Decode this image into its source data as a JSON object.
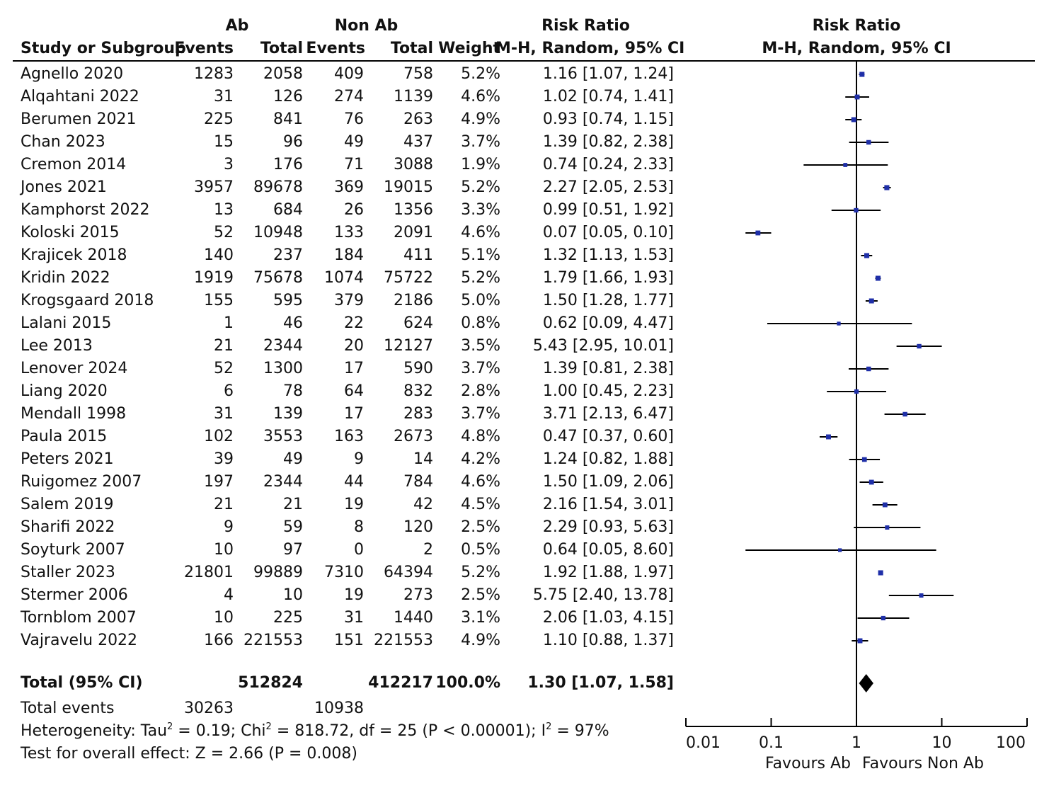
{
  "headers": {
    "group1": "Ab",
    "group2": "Non Ab",
    "risk_ratio": "Risk Ratio",
    "risk_ratio_plot": "Risk Ratio",
    "study": "Study or Subgroup",
    "events1": "Events",
    "total1": "Total",
    "events2": "Events",
    "total2": "Total",
    "weight": "Weight",
    "method": "M-H, Random, 95% CI",
    "method_plot": "M-H, Random, 95% CI"
  },
  "studies": [
    {
      "name": "Agnello 2020",
      "e1": "1283",
      "t1": "2058",
      "e2": "409",
      "t2": "758",
      "w": "5.2%",
      "ci": "1.16 [1.07, 1.24]"
    },
    {
      "name": "Alqahtani 2022",
      "e1": "31",
      "t1": "126",
      "e2": "274",
      "t2": "1139",
      "w": "4.6%",
      "ci": "1.02 [0.74, 1.41]"
    },
    {
      "name": "Berumen 2021",
      "e1": "225",
      "t1": "841",
      "e2": "76",
      "t2": "263",
      "w": "4.9%",
      "ci": "0.93 [0.74, 1.15]"
    },
    {
      "name": "Chan 2023",
      "e1": "15",
      "t1": "96",
      "e2": "49",
      "t2": "437",
      "w": "3.7%",
      "ci": "1.39 [0.82, 2.38]"
    },
    {
      "name": "Cremon 2014",
      "e1": "3",
      "t1": "176",
      "e2": "71",
      "t2": "3088",
      "w": "1.9%",
      "ci": "0.74 [0.24, 2.33]"
    },
    {
      "name": "Jones 2021",
      "e1": "3957",
      "t1": "89678",
      "e2": "369",
      "t2": "19015",
      "w": "5.2%",
      "ci": "2.27 [2.05, 2.53]"
    },
    {
      "name": "Kamphorst 2022",
      "e1": "13",
      "t1": "684",
      "e2": "26",
      "t2": "1356",
      "w": "3.3%",
      "ci": "0.99 [0.51, 1.92]"
    },
    {
      "name": "Koloski 2015",
      "e1": "52",
      "t1": "10948",
      "e2": "133",
      "t2": "2091",
      "w": "4.6%",
      "ci": "0.07 [0.05, 0.10]"
    },
    {
      "name": "Krajicek 2018",
      "e1": "140",
      "t1": "237",
      "e2": "184",
      "t2": "411",
      "w": "5.1%",
      "ci": "1.32 [1.13, 1.53]"
    },
    {
      "name": "Kridin 2022",
      "e1": "1919",
      "t1": "75678",
      "e2": "1074",
      "t2": "75722",
      "w": "5.2%",
      "ci": "1.79 [1.66, 1.93]"
    },
    {
      "name": "Krogsgaard 2018",
      "e1": "155",
      "t1": "595",
      "e2": "379",
      "t2": "2186",
      "w": "5.0%",
      "ci": "1.50 [1.28, 1.77]"
    },
    {
      "name": "Lalani 2015",
      "e1": "1",
      "t1": "46",
      "e2": "22",
      "t2": "624",
      "w": "0.8%",
      "ci": "0.62 [0.09, 4.47]"
    },
    {
      "name": "Lee 2013",
      "e1": "21",
      "t1": "2344",
      "e2": "20",
      "t2": "12127",
      "w": "3.5%",
      "ci": "5.43 [2.95, 10.01]"
    },
    {
      "name": "Lenover 2024",
      "e1": "52",
      "t1": "1300",
      "e2": "17",
      "t2": "590",
      "w": "3.7%",
      "ci": "1.39 [0.81, 2.38]"
    },
    {
      "name": "Liang 2020",
      "e1": "6",
      "t1": "78",
      "e2": "64",
      "t2": "832",
      "w": "2.8%",
      "ci": "1.00 [0.45, 2.23]"
    },
    {
      "name": "Mendall 1998",
      "e1": "31",
      "t1": "139",
      "e2": "17",
      "t2": "283",
      "w": "3.7%",
      "ci": "3.71 [2.13, 6.47]"
    },
    {
      "name": "Paula 2015",
      "e1": "102",
      "t1": "3553",
      "e2": "163",
      "t2": "2673",
      "w": "4.8%",
      "ci": "0.47 [0.37, 0.60]"
    },
    {
      "name": "Peters 2021",
      "e1": "39",
      "t1": "49",
      "e2": "9",
      "t2": "14",
      "w": "4.2%",
      "ci": "1.24 [0.82, 1.88]"
    },
    {
      "name": "Ruigomez 2007",
      "e1": "197",
      "t1": "2344",
      "e2": "44",
      "t2": "784",
      "w": "4.6%",
      "ci": "1.50 [1.09, 2.06]"
    },
    {
      "name": "Salem 2019",
      "e1": "21",
      "t1": "21",
      "e2": "19",
      "t2": "42",
      "w": "4.5%",
      "ci": "2.16 [1.54, 3.01]"
    },
    {
      "name": "Sharifi 2022",
      "e1": "9",
      "t1": "59",
      "e2": "8",
      "t2": "120",
      "w": "2.5%",
      "ci": "2.29 [0.93, 5.63]"
    },
    {
      "name": "Soyturk 2007",
      "e1": "10",
      "t1": "97",
      "e2": "0",
      "t2": "2",
      "w": "0.5%",
      "ci": "0.64 [0.05, 8.60]"
    },
    {
      "name": "Staller 2023",
      "e1": "21801",
      "t1": "99889",
      "e2": "7310",
      "t2": "64394",
      "w": "5.2%",
      "ci": "1.92 [1.88, 1.97]"
    },
    {
      "name": "Stermer 2006",
      "e1": "4",
      "t1": "10",
      "e2": "19",
      "t2": "273",
      "w": "2.5%",
      "ci": "5.75 [2.40, 13.78]"
    },
    {
      "name": "Tornblom 2007",
      "e1": "10",
      "t1": "225",
      "e2": "31",
      "t2": "1440",
      "w": "3.1%",
      "ci": "2.06 [1.03, 4.15]"
    },
    {
      "name": "Vajravelu 2022",
      "e1": "166",
      "t1": "221553",
      "e2": "151",
      "t2": "221553",
      "w": "4.9%",
      "ci": "1.10 [0.88, 1.37]"
    }
  ],
  "total": {
    "label": "Total (95% CI)",
    "t1": "512824",
    "t2": "412217",
    "w": "100.0%",
    "ci": "1.30 [1.07, 1.58]"
  },
  "total_events": {
    "label": "Total events",
    "e1": "30263",
    "e2": "10938"
  },
  "heterogeneity": {
    "prefix": "Heterogeneity: Tau",
    "tau2_sup": "2",
    "tau2_value": " = 0.19; Chi",
    "chi2_sup": "2",
    "chi2_value": " = 818.72, df = 25 (P < 0.00001); I",
    "i2_sup": "2",
    "i2_value": " = 97%"
  },
  "overall_effect": "Test for overall effect: Z = 2.66 (P = 0.008)",
  "axis": {
    "ticks": [
      "0.01",
      "0.1",
      "1",
      "10",
      "100"
    ],
    "favours_left": "Favours Ab",
    "favours_right": "Favours Non Ab"
  },
  "colors": {
    "marker": "#1f2fa8",
    "line": "#000000"
  },
  "chart_data": {
    "type": "forest",
    "x_scale": "log",
    "xlim": [
      0.01,
      100
    ],
    "null_value": 1,
    "estimates": [
      {
        "rr": 1.16,
        "lo": 1.07,
        "hi": 1.24,
        "weight": 5.2
      },
      {
        "rr": 1.02,
        "lo": 0.74,
        "hi": 1.41,
        "weight": 4.6
      },
      {
        "rr": 0.93,
        "lo": 0.74,
        "hi": 1.15,
        "weight": 4.9
      },
      {
        "rr": 1.39,
        "lo": 0.82,
        "hi": 2.38,
        "weight": 3.7
      },
      {
        "rr": 0.74,
        "lo": 0.24,
        "hi": 2.33,
        "weight": 1.9
      },
      {
        "rr": 2.27,
        "lo": 2.05,
        "hi": 2.53,
        "weight": 5.2
      },
      {
        "rr": 0.99,
        "lo": 0.51,
        "hi": 1.92,
        "weight": 3.3
      },
      {
        "rr": 0.07,
        "lo": 0.05,
        "hi": 0.1,
        "weight": 4.6
      },
      {
        "rr": 1.32,
        "lo": 1.13,
        "hi": 1.53,
        "weight": 5.1
      },
      {
        "rr": 1.79,
        "lo": 1.66,
        "hi": 1.93,
        "weight": 5.2
      },
      {
        "rr": 1.5,
        "lo": 1.28,
        "hi": 1.77,
        "weight": 5.0
      },
      {
        "rr": 0.62,
        "lo": 0.09,
        "hi": 4.47,
        "weight": 0.8
      },
      {
        "rr": 5.43,
        "lo": 2.95,
        "hi": 10.01,
        "weight": 3.5
      },
      {
        "rr": 1.39,
        "lo": 0.81,
        "hi": 2.38,
        "weight": 3.7
      },
      {
        "rr": 1.0,
        "lo": 0.45,
        "hi": 2.23,
        "weight": 2.8
      },
      {
        "rr": 3.71,
        "lo": 2.13,
        "hi": 6.47,
        "weight": 3.7
      },
      {
        "rr": 0.47,
        "lo": 0.37,
        "hi": 0.6,
        "weight": 4.8
      },
      {
        "rr": 1.24,
        "lo": 0.82,
        "hi": 1.88,
        "weight": 4.2
      },
      {
        "rr": 1.5,
        "lo": 1.09,
        "hi": 2.06,
        "weight": 4.6
      },
      {
        "rr": 2.16,
        "lo": 1.54,
        "hi": 3.01,
        "weight": 4.5
      },
      {
        "rr": 2.29,
        "lo": 0.93,
        "hi": 5.63,
        "weight": 2.5
      },
      {
        "rr": 0.64,
        "lo": 0.05,
        "hi": 8.6,
        "weight": 0.5
      },
      {
        "rr": 1.92,
        "lo": 1.88,
        "hi": 1.97,
        "weight": 5.2
      },
      {
        "rr": 5.75,
        "lo": 2.4,
        "hi": 13.78,
        "weight": 2.5
      },
      {
        "rr": 2.06,
        "lo": 1.03,
        "hi": 4.15,
        "weight": 3.1
      },
      {
        "rr": 1.1,
        "lo": 0.88,
        "hi": 1.37,
        "weight": 4.9
      }
    ],
    "pooled": {
      "rr": 1.3,
      "lo": 1.07,
      "hi": 1.58
    }
  }
}
